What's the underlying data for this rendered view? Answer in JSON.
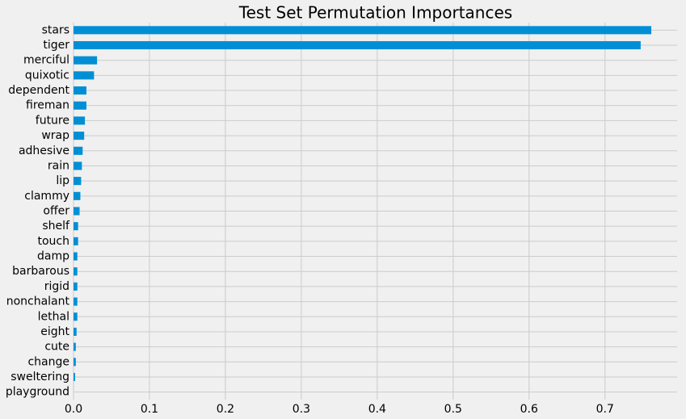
{
  "chart_data": {
    "type": "barh",
    "title": "Test Set Permutation Importances",
    "categories": [
      "stars",
      "tiger",
      "merciful",
      "quixotic",
      "dependent",
      "fireman",
      "future",
      "wrap",
      "adhesive",
      "rain",
      "lip",
      "clammy",
      "offer",
      "shelf",
      "touch",
      "damp",
      "barbarous",
      "rigid",
      "nonchalant",
      "lethal",
      "eight",
      "cute",
      "change",
      "sweltering",
      "playground"
    ],
    "values": [
      0.761,
      0.747,
      0.031,
      0.027,
      0.017,
      0.017,
      0.015,
      0.014,
      0.012,
      0.011,
      0.01,
      0.009,
      0.008,
      0.006,
      0.006,
      0.005,
      0.005,
      0.005,
      0.005,
      0.005,
      0.004,
      0.003,
      0.003,
      0.002,
      0
    ],
    "color": "#008fd5",
    "xlim": [
      0,
      0.795
    ],
    "xticks": [
      {
        "value": 0,
        "label": "0.0"
      },
      0.1,
      0.2,
      0.3,
      0.4,
      0.5,
      0.6,
      0.7
    ],
    "grid": true
  }
}
